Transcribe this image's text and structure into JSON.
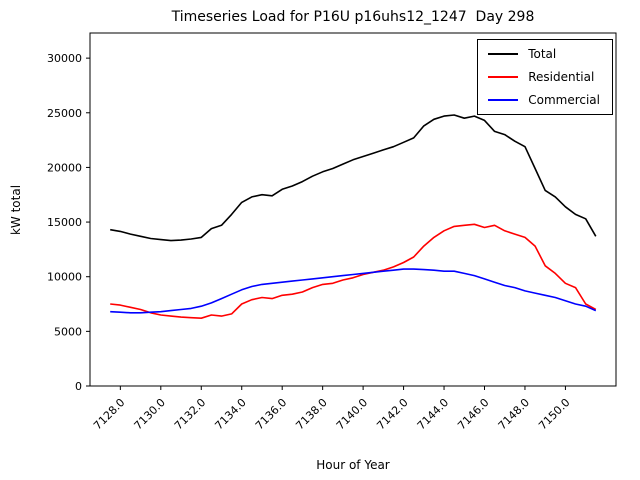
{
  "chart_data": {
    "type": "line",
    "title": "Timeseries Load for P16U p16uhs12_1247  Day 298",
    "xlabel": "Hour of Year",
    "ylabel": "kW total",
    "xlim": [
      7126.5,
      7152.5
    ],
    "ylim": [
      0,
      32300
    ],
    "grid": false,
    "legend_position": "upper right",
    "x_ticks": [
      7128,
      7130,
      7132,
      7134,
      7136,
      7138,
      7140,
      7142,
      7144,
      7146,
      7148,
      7150
    ],
    "x_tick_labels": [
      "7128.0",
      "7130.0",
      "7132.0",
      "7134.0",
      "7136.0",
      "7138.0",
      "7140.0",
      "7142.0",
      "7144.0",
      "7146.0",
      "7148.0",
      "7150.0"
    ],
    "y_ticks": [
      0,
      5000,
      10000,
      15000,
      20000,
      25000,
      30000
    ],
    "y_tick_labels": [
      "0",
      "5000",
      "10000",
      "15000",
      "20000",
      "25000",
      "30000"
    ],
    "x": [
      7127.5,
      7128.0,
      7128.5,
      7129.0,
      7129.5,
      7130.0,
      7130.5,
      7131.0,
      7131.5,
      7132.0,
      7132.5,
      7133.0,
      7133.5,
      7134.0,
      7134.5,
      7135.0,
      7135.5,
      7136.0,
      7136.5,
      7137.0,
      7137.5,
      7138.0,
      7138.5,
      7139.0,
      7139.5,
      7140.0,
      7140.5,
      7141.0,
      7141.5,
      7142.0,
      7142.5,
      7143.0,
      7143.5,
      7144.0,
      7144.5,
      7145.0,
      7145.5,
      7146.0,
      7146.5,
      7147.0,
      7147.5,
      7148.0,
      7148.5,
      7149.0,
      7149.5,
      7150.0,
      7150.5,
      7151.0,
      7151.5
    ],
    "series": [
      {
        "name": "Total",
        "color": "#000000",
        "values": [
          14300,
          14150,
          13900,
          13700,
          13500,
          13400,
          13300,
          13350,
          13450,
          13600,
          14400,
          14700,
          15700,
          16800,
          17300,
          17500,
          17400,
          18000,
          18300,
          18700,
          19200,
          19600,
          19900,
          20300,
          20700,
          21000,
          21300,
          21600,
          21900,
          22300,
          22700,
          23800,
          24400,
          24700,
          24800,
          24500,
          24700,
          24300,
          23300,
          23000,
          22400,
          21900,
          19900,
          17900,
          17300,
          16400,
          15700,
          15300,
          13700
        ]
      },
      {
        "name": "Residential",
        "color": "#ff0000",
        "values": [
          7500,
          7400,
          7200,
          7000,
          6700,
          6500,
          6400,
          6300,
          6250,
          6200,
          6500,
          6400,
          6600,
          7500,
          7900,
          8100,
          8000,
          8300,
          8400,
          8600,
          9000,
          9300,
          9400,
          9700,
          9900,
          10200,
          10400,
          10600,
          10900,
          11300,
          11800,
          12800,
          13600,
          14200,
          14600,
          14700,
          14800,
          14500,
          14700,
          14200,
          13900,
          13600,
          12800,
          11000,
          10300,
          9400,
          9000,
          7500,
          7000
        ]
      },
      {
        "name": "Commercial",
        "color": "#0000ff",
        "values": [
          6800,
          6750,
          6700,
          6700,
          6750,
          6800,
          6900,
          7000,
          7100,
          7300,
          7600,
          8000,
          8400,
          8800,
          9100,
          9300,
          9400,
          9500,
          9600,
          9700,
          9800,
          9900,
          10000,
          10100,
          10200,
          10300,
          10400,
          10500,
          10600,
          10700,
          10700,
          10650,
          10600,
          10500,
          10500,
          10300,
          10100,
          9800,
          9500,
          9200,
          9000,
          8700,
          8500,
          8300,
          8100,
          7800,
          7500,
          7300,
          6900
        ]
      }
    ]
  }
}
